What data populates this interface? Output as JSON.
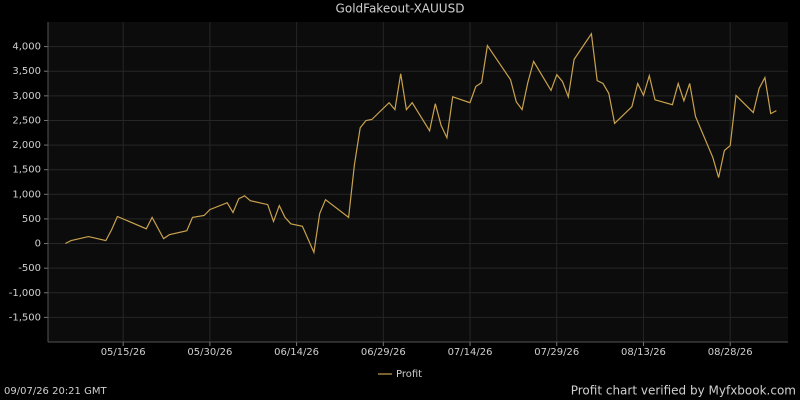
{
  "chart_data": {
    "type": "line",
    "title": "GoldFakeout-XAUUSD",
    "x": [
      "05/05/26",
      "05/06/26",
      "05/09/26",
      "05/12/26",
      "05/13/26",
      "05/14/26",
      "05/19/26",
      "05/20/26",
      "05/22/26",
      "05/23/26",
      "05/26/26",
      "05/27/26",
      "05/29/26",
      "05/30/26",
      "06/02/26",
      "06/03/26",
      "06/04/26",
      "06/05/26",
      "06/06/26",
      "06/09/26",
      "06/10/26",
      "06/11/26",
      "06/12/26",
      "06/13/26",
      "06/15/26",
      "06/17/26",
      "06/18/26",
      "06/19/26",
      "06/23/26",
      "06/24/26",
      "06/25/26",
      "06/26/26",
      "06/27/26",
      "06/30/26",
      "07/01/26",
      "07/02/26",
      "07/03/26",
      "07/04/26",
      "07/07/26",
      "07/08/26",
      "07/09/26",
      "07/10/26",
      "07/11/26",
      "07/14/26",
      "07/15/26",
      "07/16/26",
      "07/17/26",
      "07/21/26",
      "07/22/26",
      "07/23/26",
      "07/24/26",
      "07/25/26",
      "07/28/26",
      "07/29/26",
      "07/30/26",
      "07/31/26",
      "08/01/26",
      "08/04/26",
      "08/05/26",
      "08/06/26",
      "08/07/26",
      "08/08/26",
      "08/11/26",
      "08/12/26",
      "08/13/26",
      "08/14/26",
      "08/15/26",
      "08/18/26",
      "08/19/26",
      "08/20/26",
      "08/21/26",
      "08/22/26",
      "08/25/26",
      "08/26/26",
      "08/27/26",
      "08/28/26",
      "08/29/26",
      "09/01/26",
      "09/02/26",
      "09/03/26",
      "09/04/26",
      "09/05/26"
    ],
    "series": [
      {
        "name": "Profit",
        "color": "#c9a24e",
        "values": [
          0,
          60,
          140,
          60,
          280,
          550,
          300,
          530,
          100,
          180,
          260,
          530,
          570,
          690,
          830,
          630,
          910,
          970,
          870,
          790,
          450,
          770,
          530,
          400,
          350,
          -180,
          610,
          890,
          530,
          1600,
          2350,
          2500,
          2520,
          2860,
          2720,
          3450,
          2720,
          2860,
          2290,
          2840,
          2400,
          2150,
          2980,
          2860,
          3190,
          3270,
          4020,
          3330,
          2880,
          2720,
          3270,
          3700,
          3110,
          3430,
          3290,
          2980,
          3740,
          4260,
          3310,
          3250,
          3050,
          2440,
          2780,
          3250,
          3010,
          3410,
          2920,
          2820,
          3250,
          2900,
          3250,
          2580,
          1750,
          1340,
          1890,
          1990,
          3010,
          2660,
          3150,
          3370,
          2640,
          2700
        ]
      }
    ],
    "xlim": [
      "05/02/26",
      "09/07/26"
    ],
    "xticks": [
      "05/15/26",
      "05/30/26",
      "06/14/26",
      "06/29/26",
      "07/14/26",
      "07/29/26",
      "08/13/26",
      "08/28/26"
    ],
    "ylim": [
      -2000,
      4500
    ],
    "yticks": [
      {
        "value": -1500,
        "label": "-1,500"
      },
      {
        "value": -1000,
        "label": "-1,000"
      },
      -500,
      0,
      500,
      {
        "value": 1000,
        "label": "1,000"
      },
      {
        "value": 1500,
        "label": "1,500"
      },
      {
        "value": 2000,
        "label": "2,000"
      },
      {
        "value": 2500,
        "label": "2,500"
      },
      {
        "value": 3000,
        "label": "3,000"
      },
      {
        "value": 3500,
        "label": "3,500"
      },
      {
        "value": 4000,
        "label": "4,000"
      }
    ],
    "grid": true,
    "legend": "bottom",
    "annotations": [
      "09/07/26 20:21 GMT",
      "Profit chart verified by Myfxbook.com"
    ]
  }
}
